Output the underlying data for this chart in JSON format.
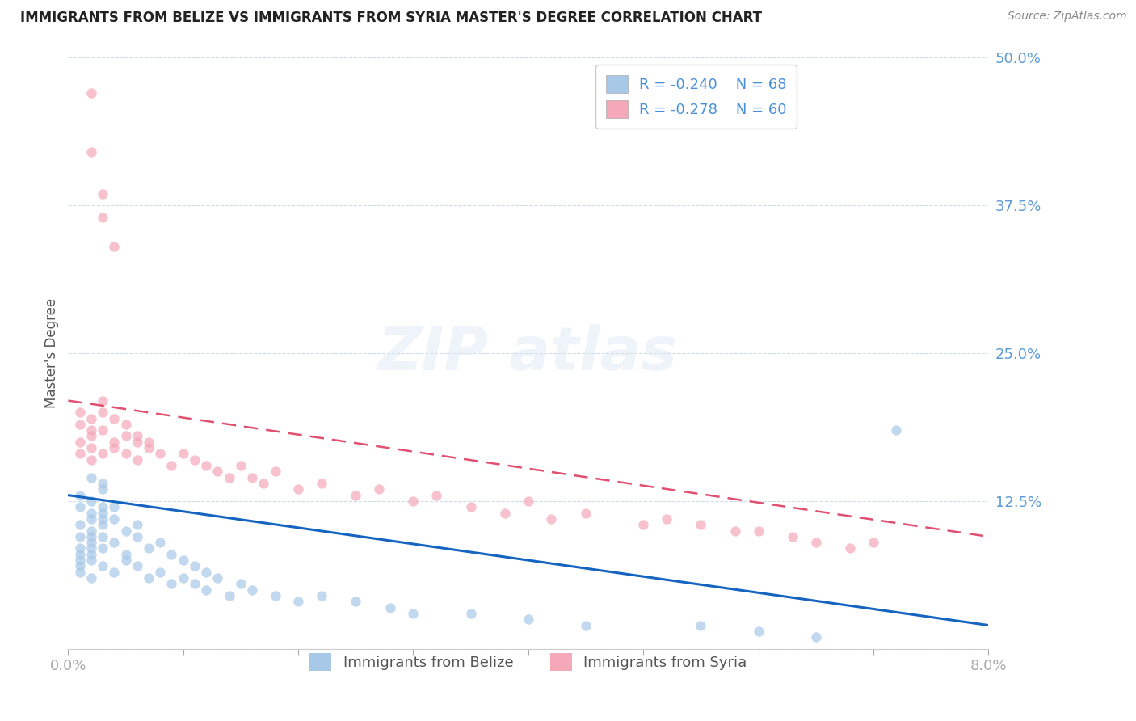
{
  "title": "IMMIGRANTS FROM BELIZE VS IMMIGRANTS FROM SYRIA MASTER'S DEGREE CORRELATION CHART",
  "source_text": "Source: ZipAtlas.com",
  "ylabel": "Master's Degree",
  "xlim": [
    0.0,
    0.08
  ],
  "ylim": [
    0.0,
    0.5
  ],
  "xtick_vals": [
    0.0,
    0.01,
    0.02,
    0.03,
    0.04,
    0.05,
    0.06,
    0.07,
    0.08
  ],
  "xtick_labels": [
    "0.0%",
    "",
    "",
    "",
    "",
    "",
    "",
    "",
    "8.0%"
  ],
  "ytick_vals": [
    0.0,
    0.125,
    0.25,
    0.375,
    0.5
  ],
  "ytick_labels": [
    "",
    "12.5%",
    "25.0%",
    "37.5%",
    "50.0%"
  ],
  "belize_color": "#a8c8e8",
  "syria_color": "#f4a8b8",
  "belize_line_color": "#1565c0",
  "syria_line_color": "#e05070",
  "r_belize": -0.24,
  "n_belize": 68,
  "r_syria": -0.278,
  "n_syria": 60,
  "belize_label": "Immigrants from Belize",
  "syria_label": "Immigrants from Syria",
  "belize_line_x": [
    0.0,
    0.08
  ],
  "belize_line_y": [
    0.13,
    0.02
  ],
  "syria_line_x": [
    0.0,
    0.08
  ],
  "syria_line_y": [
    0.21,
    0.095
  ],
  "belize_x": [
    0.001,
    0.002,
    0.001,
    0.002,
    0.003,
    0.001,
    0.002,
    0.003,
    0.001,
    0.002,
    0.001,
    0.002,
    0.003,
    0.002,
    0.001,
    0.002,
    0.003,
    0.001,
    0.002,
    0.001,
    0.003,
    0.002,
    0.001,
    0.003,
    0.002,
    0.004,
    0.003,
    0.002,
    0.004,
    0.003,
    0.005,
    0.004,
    0.003,
    0.006,
    0.005,
    0.004,
    0.006,
    0.005,
    0.007,
    0.006,
    0.008,
    0.007,
    0.009,
    0.008,
    0.01,
    0.009,
    0.011,
    0.01,
    0.012,
    0.011,
    0.013,
    0.012,
    0.015,
    0.014,
    0.016,
    0.018,
    0.02,
    0.022,
    0.025,
    0.028,
    0.03,
    0.035,
    0.04,
    0.045,
    0.055,
    0.06,
    0.065,
    0.072
  ],
  "belize_y": [
    0.13,
    0.145,
    0.12,
    0.115,
    0.14,
    0.105,
    0.125,
    0.135,
    0.095,
    0.11,
    0.085,
    0.1,
    0.12,
    0.09,
    0.08,
    0.095,
    0.105,
    0.075,
    0.085,
    0.07,
    0.115,
    0.08,
    0.065,
    0.11,
    0.075,
    0.12,
    0.095,
    0.06,
    0.11,
    0.085,
    0.1,
    0.09,
    0.07,
    0.105,
    0.08,
    0.065,
    0.095,
    0.075,
    0.085,
    0.07,
    0.09,
    0.06,
    0.08,
    0.065,
    0.075,
    0.055,
    0.07,
    0.06,
    0.065,
    0.055,
    0.06,
    0.05,
    0.055,
    0.045,
    0.05,
    0.045,
    0.04,
    0.045,
    0.04,
    0.035,
    0.03,
    0.03,
    0.025,
    0.02,
    0.02,
    0.015,
    0.01,
    0.185
  ],
  "syria_x": [
    0.001,
    0.002,
    0.001,
    0.002,
    0.001,
    0.002,
    0.003,
    0.001,
    0.002,
    0.003,
    0.002,
    0.003,
    0.004,
    0.003,
    0.004,
    0.005,
    0.004,
    0.005,
    0.006,
    0.005,
    0.006,
    0.007,
    0.006,
    0.007,
    0.008,
    0.009,
    0.01,
    0.011,
    0.012,
    0.013,
    0.014,
    0.015,
    0.016,
    0.017,
    0.018,
    0.02,
    0.022,
    0.025,
    0.027,
    0.03,
    0.032,
    0.035,
    0.038,
    0.04,
    0.042,
    0.045,
    0.05,
    0.052,
    0.055,
    0.058,
    0.06,
    0.063,
    0.065,
    0.068,
    0.07,
    0.002,
    0.002,
    0.003,
    0.003,
    0.004
  ],
  "syria_y": [
    0.2,
    0.185,
    0.175,
    0.195,
    0.165,
    0.18,
    0.2,
    0.19,
    0.17,
    0.21,
    0.16,
    0.185,
    0.175,
    0.165,
    0.195,
    0.18,
    0.17,
    0.19,
    0.175,
    0.165,
    0.18,
    0.17,
    0.16,
    0.175,
    0.165,
    0.155,
    0.165,
    0.16,
    0.155,
    0.15,
    0.145,
    0.155,
    0.145,
    0.14,
    0.15,
    0.135,
    0.14,
    0.13,
    0.135,
    0.125,
    0.13,
    0.12,
    0.115,
    0.125,
    0.11,
    0.115,
    0.105,
    0.11,
    0.105,
    0.1,
    0.1,
    0.095,
    0.09,
    0.085,
    0.09,
    0.47,
    0.42,
    0.385,
    0.365,
    0.34
  ]
}
